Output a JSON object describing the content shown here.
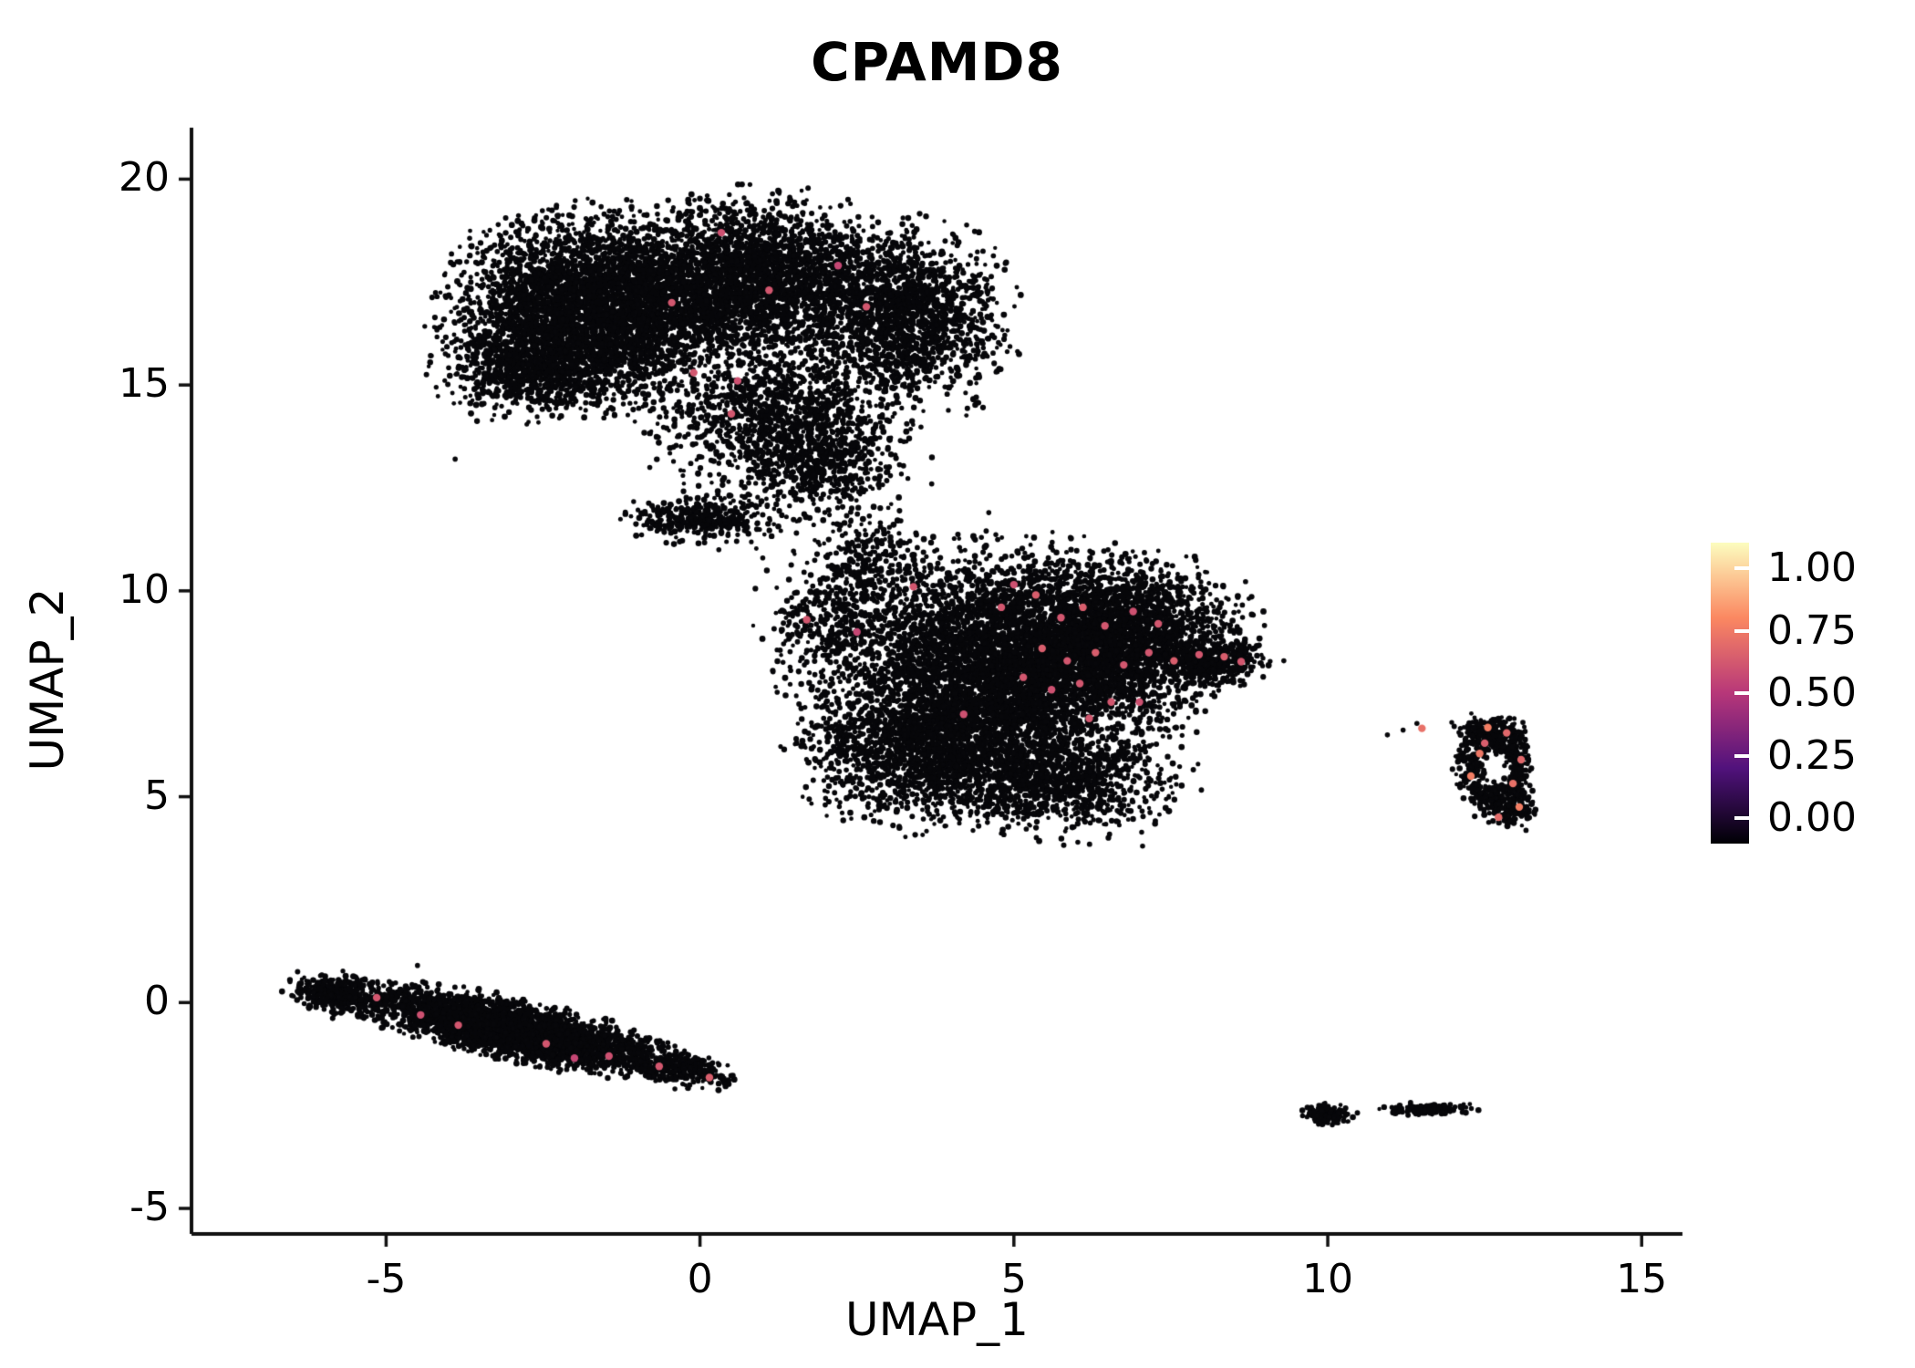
{
  "chart_data": {
    "type": "scatter",
    "title": "CPAMD8",
    "xlabel": "UMAP_1",
    "ylabel": "UMAP_2",
    "x_tick_labels": [
      "-5",
      "0",
      "5",
      "10",
      "15"
    ],
    "x_tick_values": [
      -5,
      0,
      5,
      10,
      15
    ],
    "y_tick_labels": [
      "20",
      "15",
      "10",
      "5",
      "0",
      "-5"
    ],
    "y_tick_values": [
      20,
      15,
      10,
      5,
      0,
      -5
    ],
    "x_range": [
      -8.1,
      15.65
    ],
    "y_range": [
      -5.62,
      21.25
    ],
    "point_color": "#07070a",
    "point_radius": 2.8,
    "highlight_radius": 4.2,
    "axis_color": "#111111",
    "colormap": [
      {
        "v": 0.0,
        "color": "#000004"
      },
      {
        "v": 0.25,
        "color": "#51127c"
      },
      {
        "v": 0.5,
        "color": "#b73779"
      },
      {
        "v": 0.75,
        "color": "#fb8861"
      },
      {
        "v": 1.0,
        "color": "#fcfdbf"
      }
    ],
    "legend": {
      "labels": [
        "1.00",
        "0.75",
        "0.50",
        "0.25",
        "0.00"
      ],
      "values": [
        1.0,
        0.75,
        0.5,
        0.25,
        0.0
      ]
    },
    "clusters": [
      {
        "name": "upper-left-large",
        "blobs": [
          {
            "cx": -1.6,
            "cy": 16.9,
            "sx": 1.05,
            "sy": 1.0,
            "n": 4200
          },
          {
            "cx": 0.9,
            "cy": 17.6,
            "sx": 1.0,
            "sy": 0.85,
            "n": 2600
          },
          {
            "cx": 3.3,
            "cy": 16.6,
            "sx": 0.75,
            "sy": 1.0,
            "n": 1700
          },
          {
            "cx": -2.6,
            "cy": 15.5,
            "sx": 0.7,
            "sy": 0.6,
            "n": 900
          },
          {
            "cx": 1.2,
            "cy": 14.4,
            "sx": 0.9,
            "sy": 0.75,
            "n": 1100
          },
          {
            "cx": 2.0,
            "cy": 13.2,
            "sx": 0.55,
            "sy": 0.6,
            "n": 450
          },
          {
            "cx": 0.0,
            "cy": 11.75,
            "sx": 0.5,
            "sy": 0.25,
            "n": 380
          },
          {
            "cx": 1.5,
            "cy": 12.5,
            "sx": 0.9,
            "sy": 0.7,
            "n": 200
          }
        ]
      },
      {
        "name": "central-large",
        "blobs": [
          {
            "cx": 4.8,
            "cy": 8.2,
            "sx": 1.35,
            "sy": 1.25,
            "n": 5200
          },
          {
            "cx": 6.6,
            "cy": 8.9,
            "sx": 0.95,
            "sy": 0.85,
            "n": 2400
          },
          {
            "cx": 3.7,
            "cy": 6.1,
            "sx": 0.95,
            "sy": 0.8,
            "n": 1700
          },
          {
            "cx": 5.8,
            "cy": 5.3,
            "sx": 0.85,
            "sy": 0.55,
            "n": 900
          },
          {
            "cx": 8.2,
            "cy": 8.3,
            "sx": 0.35,
            "sy": 0.25,
            "n": 380
          },
          {
            "cx": 2.7,
            "cy": 10.7,
            "sx": 0.45,
            "sy": 0.5,
            "n": 220
          },
          {
            "cx": 2.1,
            "cy": 9.4,
            "sx": 0.5,
            "sy": 0.65,
            "n": 300
          }
        ]
      },
      {
        "name": "lower-left-elongated",
        "blobs": [
          {
            "cx": -3.0,
            "cy": -0.65,
            "sx": 1.15,
            "sy": 0.3,
            "n": 3600,
            "rot": -18
          },
          {
            "cx": -5.8,
            "cy": 0.2,
            "sx": 0.35,
            "sy": 0.22,
            "n": 350,
            "rot": -15
          },
          {
            "cx": -0.35,
            "cy": -1.6,
            "sx": 0.4,
            "sy": 0.2,
            "n": 300,
            "rot": -18
          }
        ]
      },
      {
        "name": "right-ring",
        "ring": {
          "cx": 12.65,
          "cy": 5.7,
          "rx": 0.42,
          "ry": 0.85,
          "spread": 0.28,
          "n": 620
        },
        "blobs": [
          {
            "cx": 12.55,
            "cy": 6.65,
            "sx": 0.25,
            "sy": 0.15,
            "n": 100
          },
          {
            "cx": 12.95,
            "cy": 4.65,
            "sx": 0.18,
            "sy": 0.2,
            "n": 80
          }
        ]
      },
      {
        "name": "bottom-right-small",
        "blobs": [
          {
            "cx": 10.0,
            "cy": -2.72,
            "sx": 0.18,
            "sy": 0.11,
            "n": 160
          },
          {
            "cx": 11.6,
            "cy": -2.58,
            "sx": 0.33,
            "sy": 0.07,
            "n": 130
          },
          {
            "cx": 11.05,
            "cy": -2.65,
            "sx": 0.04,
            "sy": 0.03,
            "n": 10
          }
        ]
      }
    ],
    "strays": [
      [
        7.05,
        3.8
      ],
      [
        11.2,
        6.62
      ],
      [
        11.42,
        6.78
      ],
      [
        10.95,
        6.5
      ],
      [
        9.3,
        8.3
      ],
      [
        2.3,
        12.9
      ],
      [
        0.3,
        13.1
      ],
      [
        -0.8,
        13.0
      ],
      [
        3.2,
        11.7
      ],
      [
        4.6,
        11.9
      ],
      [
        5.9,
        11.3
      ],
      [
        6.5,
        11.0
      ],
      [
        1.0,
        10.8
      ],
      [
        0.3,
        11.0
      ],
      [
        -3.9,
        13.2
      ],
      [
        -4.5,
        0.9
      ]
    ],
    "highlights": [
      [
        0.34,
        18.7,
        0.58
      ],
      [
        1.1,
        17.3,
        0.6
      ],
      [
        2.2,
        17.9,
        0.55
      ],
      [
        -0.45,
        17.0,
        0.6
      ],
      [
        2.65,
        16.9,
        0.6
      ],
      [
        -0.1,
        15.3,
        0.6
      ],
      [
        0.6,
        15.1,
        0.58
      ],
      [
        0.5,
        14.3,
        0.6
      ],
      [
        3.4,
        10.1,
        0.6
      ],
      [
        5.0,
        10.15,
        0.58
      ],
      [
        4.8,
        9.6,
        0.6
      ],
      [
        5.35,
        9.9,
        0.62
      ],
      [
        5.75,
        9.35,
        0.6
      ],
      [
        6.1,
        9.6,
        0.62
      ],
      [
        6.45,
        9.15,
        0.6
      ],
      [
        6.9,
        9.5,
        0.58
      ],
      [
        7.3,
        9.2,
        0.6
      ],
      [
        5.45,
        8.6,
        0.62
      ],
      [
        5.85,
        8.3,
        0.6
      ],
      [
        6.3,
        8.5,
        0.62
      ],
      [
        6.75,
        8.2,
        0.6
      ],
      [
        7.15,
        8.5,
        0.6
      ],
      [
        7.55,
        8.3,
        0.62
      ],
      [
        7.95,
        8.45,
        0.6
      ],
      [
        8.35,
        8.4,
        0.62
      ],
      [
        8.62,
        8.28,
        0.6
      ],
      [
        5.15,
        7.9,
        0.6
      ],
      [
        5.6,
        7.6,
        0.58
      ],
      [
        6.05,
        7.75,
        0.6
      ],
      [
        6.55,
        7.3,
        0.6
      ],
      [
        4.2,
        7.0,
        0.58
      ],
      [
        1.7,
        9.3,
        0.6
      ],
      [
        2.5,
        9.0,
        0.55
      ],
      [
        6.2,
        6.9,
        0.6
      ],
      [
        7.0,
        7.3,
        0.58
      ],
      [
        -5.15,
        0.12,
        0.6
      ],
      [
        -4.45,
        -0.3,
        0.58
      ],
      [
        -3.85,
        -0.55,
        0.6
      ],
      [
        -2.45,
        -1.0,
        0.6
      ],
      [
        -1.45,
        -1.3,
        0.58
      ],
      [
        -0.65,
        -1.55,
        0.6
      ],
      [
        0.15,
        -1.82,
        0.62
      ],
      [
        -2.0,
        -1.35,
        0.55
      ],
      [
        11.5,
        6.66,
        0.68
      ],
      [
        12.55,
        6.68,
        0.72
      ],
      [
        12.85,
        6.55,
        0.65
      ],
      [
        12.42,
        6.05,
        0.7
      ],
      [
        12.28,
        5.5,
        0.72
      ],
      [
        12.95,
        5.32,
        0.68
      ],
      [
        13.05,
        4.75,
        0.72
      ],
      [
        12.72,
        4.5,
        0.66
      ],
      [
        12.5,
        6.3,
        0.62
      ],
      [
        13.08,
        5.9,
        0.65
      ]
    ]
  }
}
